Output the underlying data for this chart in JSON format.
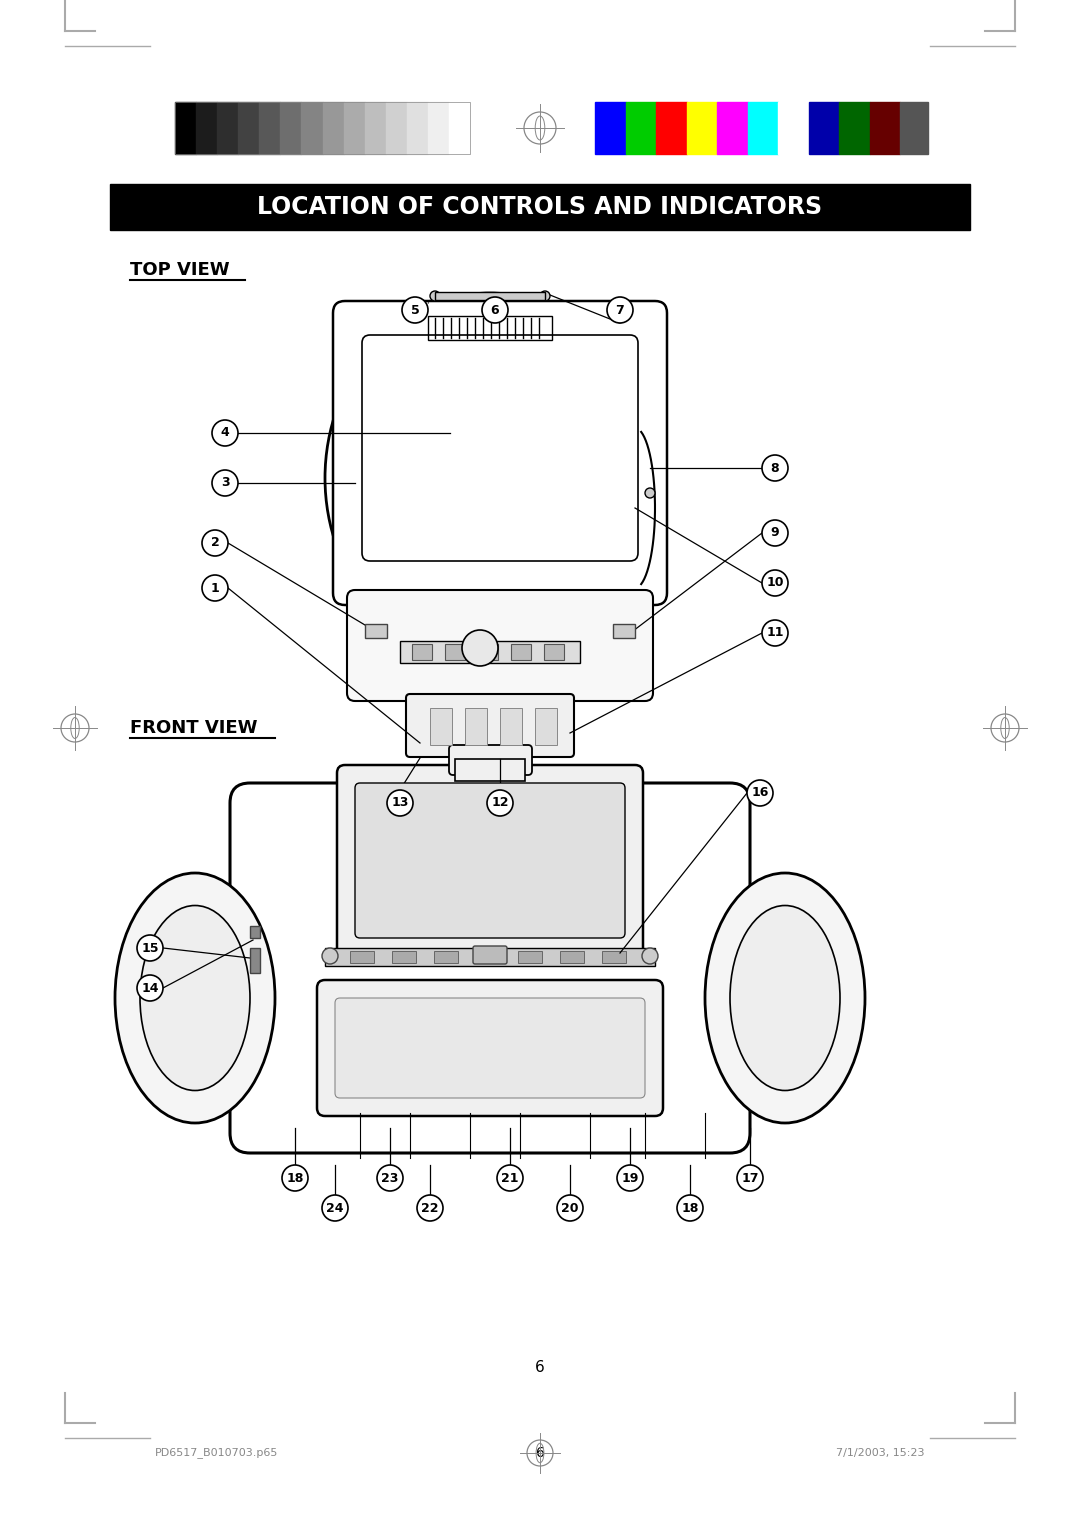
{
  "title": "LOCATION OF CONTROLS AND INDICATORS",
  "top_view_label": "TOP VIEW",
  "front_view_label": "FRONT VIEW",
  "page_number": "6",
  "footer_left": "PD6517_B010703.p65",
  "footer_center": "6",
  "footer_right": "7/1/2003, 15:23",
  "bg_color": "#ffffff",
  "title_bg": "#000000",
  "title_fg": "#ffffff",
  "grayscale_colors": [
    "#000000",
    "#1c1c1c",
    "#2e2e2e",
    "#424242",
    "#585858",
    "#6e6e6e",
    "#848484",
    "#989898",
    "#ababab",
    "#bebebe",
    "#d0d0d0",
    "#e0e0e0",
    "#efefef",
    "#ffffff"
  ],
  "color_bars_right": [
    "#0000ff",
    "#00cc00",
    "#ff0000",
    "#ffff00",
    "#ff00ff",
    "#00ffff",
    "#ffffff",
    "#0000aa",
    "#006600",
    "#660000"
  ]
}
